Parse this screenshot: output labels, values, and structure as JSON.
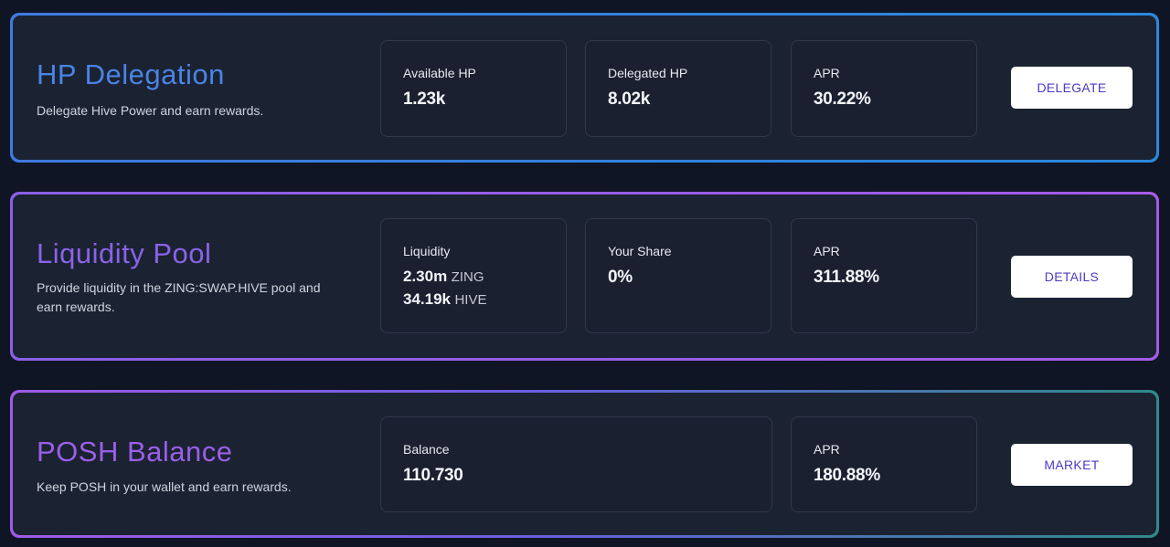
{
  "cards": {
    "hp": {
      "title": "HP Delegation",
      "description": "Delegate Hive Power and earn rewards.",
      "accent": "#3f7ae0",
      "stats": [
        {
          "label": "Available HP",
          "value": "1.23k"
        },
        {
          "label": "Delegated HP",
          "value": "8.02k"
        },
        {
          "label": "APR",
          "value": "30.22%"
        }
      ],
      "button": "DELEGATE"
    },
    "lp": {
      "title": "Liquidity Pool",
      "description": "Provide liquidity in the ZING:SWAP.HIVE pool and earn rewards.",
      "accent": "#8b5fe6",
      "liquidity": {
        "label": "Liquidity",
        "zing_amount": "2.30m",
        "zing_unit": "ZING",
        "hive_amount": "34.19k",
        "hive_unit": "HIVE"
      },
      "stats": [
        {
          "label": "Your Share",
          "value": "0%"
        },
        {
          "label": "APR",
          "value": "311.88%"
        }
      ],
      "button": "DETAILS"
    },
    "posh": {
      "title": "POSH Balance",
      "description": "Keep POSH in your wallet and earn rewards.",
      "accent": "#8f5fe8",
      "stats": [
        {
          "label": "Balance",
          "value": "110.730"
        },
        {
          "label": "APR",
          "value": "180.88%"
        }
      ],
      "button": "MARKET"
    }
  }
}
